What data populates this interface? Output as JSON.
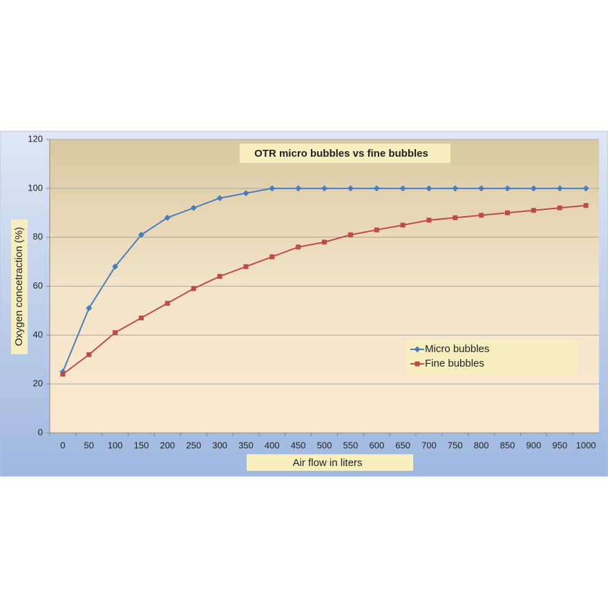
{
  "chart_data": {
    "type": "line",
    "title": "OTR micro bubbles vs fine bubbles",
    "x_label": "Air flow in liters",
    "y_label": "Oxygen concetraction (%)",
    "categories": [
      "0",
      "50",
      "100",
      "150",
      "200",
      "250",
      "300",
      "350",
      "400",
      "450",
      "500",
      "550",
      "600",
      "650",
      "700",
      "750",
      "800",
      "850",
      "900",
      "950",
      "1000"
    ],
    "series": [
      {
        "name": "Micro bubbles",
        "color": "#4a7ebb",
        "marker": "diamond",
        "values": [
          25,
          51,
          68,
          81,
          88,
          92,
          96,
          98,
          100,
          100,
          100,
          100,
          100,
          100,
          100,
          100,
          100,
          100,
          100,
          100,
          100
        ]
      },
      {
        "name": "Fine bubbles",
        "color": "#be4b48",
        "marker": "square",
        "values": [
          24,
          32,
          41,
          47,
          53,
          59,
          64,
          68,
          72,
          76,
          78,
          81,
          83,
          85,
          87,
          88,
          89,
          90,
          91,
          92,
          93
        ]
      }
    ],
    "ylim": [
      0,
      120
    ],
    "yticks": [
      0,
      20,
      40,
      60,
      80,
      100,
      120
    ],
    "grid": true
  }
}
